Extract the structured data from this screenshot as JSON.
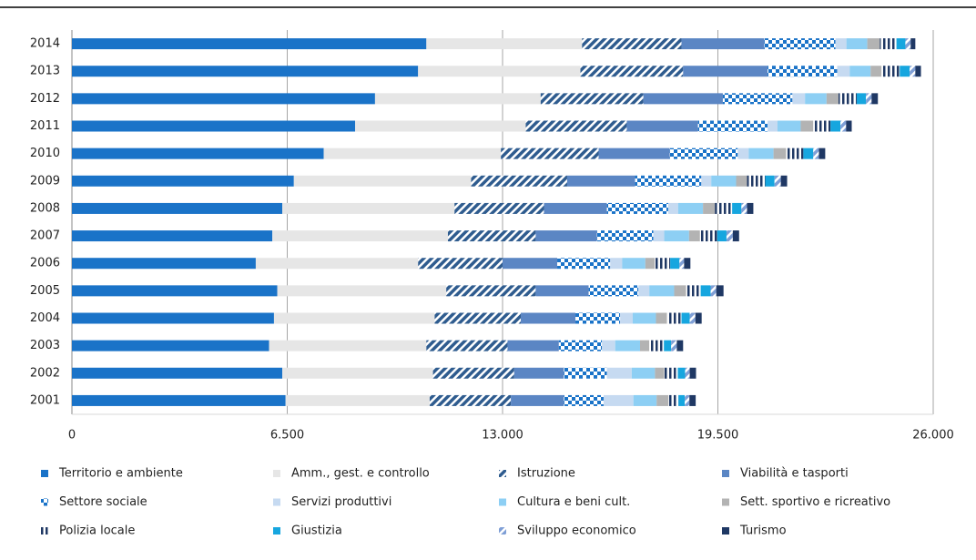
{
  "chart_data": {
    "type": "stacked-barh",
    "categories": [
      "2014",
      "2013",
      "2012",
      "2011",
      "2010",
      "2009",
      "2008",
      "2007",
      "2006",
      "2005",
      "2004",
      "2003",
      "2002",
      "2001"
    ],
    "xlim": [
      0,
      26000
    ],
    "xticks": [
      0,
      {
        "value": 6500,
        "label": "6.500"
      },
      {
        "value": 13000,
        "label": "13.000"
      },
      {
        "value": 19500,
        "label": "19.500"
      },
      {
        "value": 26000,
        "label": "26.000"
      }
    ],
    "grid": true,
    "legend": "bottom",
    "series": [
      {
        "name": "Territorio e ambiente",
        "color": "#1a73c8",
        "pattern": "solid",
        "values": [
          10700,
          10450,
          9150,
          8550,
          7600,
          6700,
          6350,
          6050,
          5550,
          6200,
          6100,
          5950,
          6350,
          6450
        ]
      },
      {
        "name": "Amm., gest. e controllo",
        "color": "#e6e6e6",
        "pattern": "solid",
        "values": [
          4700,
          4900,
          5000,
          5150,
          5350,
          5350,
          5200,
          5300,
          4900,
          5100,
          4850,
          4750,
          4550,
          4350
        ]
      },
      {
        "name": "Istruzione",
        "color": "#2f5c8f",
        "pattern": "diagonal",
        "values": [
          3000,
          3100,
          3100,
          3050,
          2950,
          2900,
          2700,
          2650,
          2550,
          2700,
          2600,
          2450,
          2450,
          2450
        ]
      },
      {
        "name": "Viabilità e tasporti",
        "color": "#5b86c4",
        "pattern": "solid",
        "values": [
          2500,
          2550,
          2400,
          2150,
          2150,
          2050,
          1900,
          1850,
          1650,
          1600,
          1650,
          1550,
          1500,
          1600
        ]
      },
      {
        "name": "Settore sociale",
        "color": "#1a73c8",
        "pattern": "check",
        "values": [
          2150,
          2100,
          2100,
          2100,
          2050,
          2000,
          1850,
          1700,
          1600,
          1500,
          1350,
          1300,
          1300,
          1200
        ]
      },
      {
        "name": "Servizi produttivi",
        "color": "#c6daf1",
        "pattern": "solid",
        "values": [
          330,
          380,
          380,
          300,
          330,
          300,
          300,
          330,
          360,
          330,
          380,
          400,
          750,
          900
        ]
      },
      {
        "name": "Cultura e beni cult.",
        "color": "#8dcff4",
        "pattern": "solid",
        "values": [
          630,
          630,
          650,
          700,
          750,
          750,
          750,
          750,
          700,
          750,
          700,
          750,
          700,
          700
        ]
      },
      {
        "name": "Sett. sportivo e ricreativo",
        "color": "#b3b3b3",
        "pattern": "solid",
        "values": [
          380,
          330,
          360,
          380,
          380,
          330,
          360,
          330,
          280,
          360,
          330,
          280,
          280,
          360
        ]
      },
      {
        "name": "Polizia locale",
        "color": "#1f3864",
        "pattern": "vertical",
        "values": [
          500,
          550,
          550,
          520,
          520,
          550,
          520,
          520,
          470,
          440,
          440,
          440,
          410,
          300
        ]
      },
      {
        "name": "Giustizia",
        "color": "#16a6df",
        "pattern": "solid",
        "values": [
          270,
          300,
          280,
          300,
          300,
          280,
          280,
          280,
          280,
          300,
          250,
          220,
          220,
          190
        ]
      },
      {
        "name": "Sviluppo economico",
        "color": "#7f9fd6",
        "pattern": "diagonal",
        "values": [
          160,
          170,
          170,
          170,
          170,
          190,
          170,
          190,
          140,
          170,
          170,
          170,
          140,
          140
        ]
      },
      {
        "name": "Turismo",
        "color": "#1f3864",
        "pattern": "solid",
        "values": [
          140,
          170,
          190,
          170,
          190,
          190,
          190,
          190,
          190,
          220,
          190,
          190,
          190,
          190
        ]
      }
    ]
  }
}
